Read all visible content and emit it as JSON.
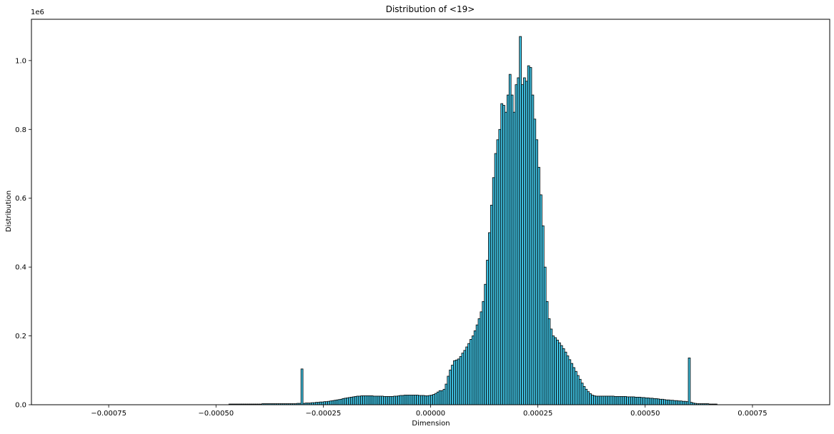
{
  "chart_data": {
    "type": "bar",
    "title": "Distribution of <19>",
    "xlabel": "Dimension",
    "ylabel": "Distribution",
    "y_offset_label": "1e6",
    "xlim": [
      -0.00093,
      0.00093
    ],
    "ylim": [
      0,
      1.12
    ],
    "y_scale": 1000000,
    "grid": false,
    "bar_color": "#3fbfdf",
    "edge_color": "#000000",
    "xticks": [
      {
        "value": -0.00075,
        "label": "−0.00075"
      },
      {
        "value": -0.0005,
        "label": "−0.00050"
      },
      {
        "value": -0.00025,
        "label": "−0.00025"
      },
      {
        "value": 0.0,
        "label": "0.00000"
      },
      {
        "value": 0.00025,
        "label": "0.00025"
      },
      {
        "value": 0.0005,
        "label": "0.00050"
      },
      {
        "value": 0.00075,
        "label": "0.00075"
      }
    ],
    "yticks": [
      {
        "value": 0.0,
        "label": "0.0"
      },
      {
        "value": 0.2,
        "label": "0.2"
      },
      {
        "value": 0.4,
        "label": "0.4"
      },
      {
        "value": 0.6,
        "label": "0.6"
      },
      {
        "value": 0.8,
        "label": "0.8"
      },
      {
        "value": 1.0,
        "label": "1.0"
      }
    ],
    "bin_start": -0.00047,
    "bin_width": 4.8e-06,
    "values": [
      0.002,
      0.002,
      0.002,
      0.002,
      0.002,
      0.002,
      0.002,
      0.002,
      0.002,
      0.002,
      0.002,
      0.002,
      0.002,
      0.002,
      0.002,
      0.002,
      0.003,
      0.003,
      0.003,
      0.003,
      0.003,
      0.003,
      0.003,
      0.003,
      0.003,
      0.003,
      0.003,
      0.003,
      0.003,
      0.003,
      0.003,
      0.003,
      0.003,
      0.004,
      0.004,
      0.104,
      0.004,
      0.005,
      0.005,
      0.005,
      0.006,
      0.006,
      0.007,
      0.007,
      0.008,
      0.008,
      0.009,
      0.009,
      0.01,
      0.011,
      0.012,
      0.013,
      0.014,
      0.015,
      0.016,
      0.018,
      0.019,
      0.02,
      0.021,
      0.022,
      0.023,
      0.024,
      0.025,
      0.025,
      0.026,
      0.026,
      0.026,
      0.026,
      0.026,
      0.026,
      0.025,
      0.025,
      0.025,
      0.025,
      0.025,
      0.024,
      0.024,
      0.024,
      0.024,
      0.024,
      0.025,
      0.025,
      0.026,
      0.027,
      0.027,
      0.028,
      0.028,
      0.028,
      0.028,
      0.028,
      0.028,
      0.028,
      0.027,
      0.027,
      0.027,
      0.026,
      0.026,
      0.027,
      0.028,
      0.03,
      0.033,
      0.037,
      0.041,
      0.041,
      0.045,
      0.06,
      0.083,
      0.101,
      0.115,
      0.128,
      0.13,
      0.133,
      0.14,
      0.15,
      0.158,
      0.168,
      0.178,
      0.19,
      0.2,
      0.215,
      0.232,
      0.25,
      0.27,
      0.3,
      0.35,
      0.42,
      0.5,
      0.58,
      0.66,
      0.73,
      0.77,
      0.8,
      0.875,
      0.87,
      0.85,
      0.9,
      0.96,
      0.9,
      0.85,
      0.93,
      0.95,
      1.07,
      0.93,
      0.95,
      0.94,
      0.985,
      0.98,
      0.9,
      0.83,
      0.77,
      0.69,
      0.61,
      0.52,
      0.4,
      0.3,
      0.25,
      0.22,
      0.2,
      0.195,
      0.188,
      0.18,
      0.172,
      0.163,
      0.153,
      0.142,
      0.131,
      0.12,
      0.108,
      0.097,
      0.085,
      0.074,
      0.063,
      0.053,
      0.045,
      0.038,
      0.032,
      0.028,
      0.026,
      0.025,
      0.025,
      0.025,
      0.025,
      0.025,
      0.025,
      0.025,
      0.025,
      0.025,
      0.024,
      0.024,
      0.024,
      0.024,
      0.024,
      0.024,
      0.023,
      0.023,
      0.023,
      0.023,
      0.022,
      0.022,
      0.022,
      0.021,
      0.021,
      0.02,
      0.02,
      0.019,
      0.019,
      0.018,
      0.018,
      0.017,
      0.016,
      0.016,
      0.015,
      0.014,
      0.014,
      0.013,
      0.013,
      0.012,
      0.012,
      0.011,
      0.011,
      0.01,
      0.01,
      0.009,
      0.136,
      0.007,
      0.005,
      0.004,
      0.003,
      0.003,
      0.003,
      0.003,
      0.003,
      0.003,
      0.002,
      0.002,
      0.002,
      0.002
    ]
  }
}
